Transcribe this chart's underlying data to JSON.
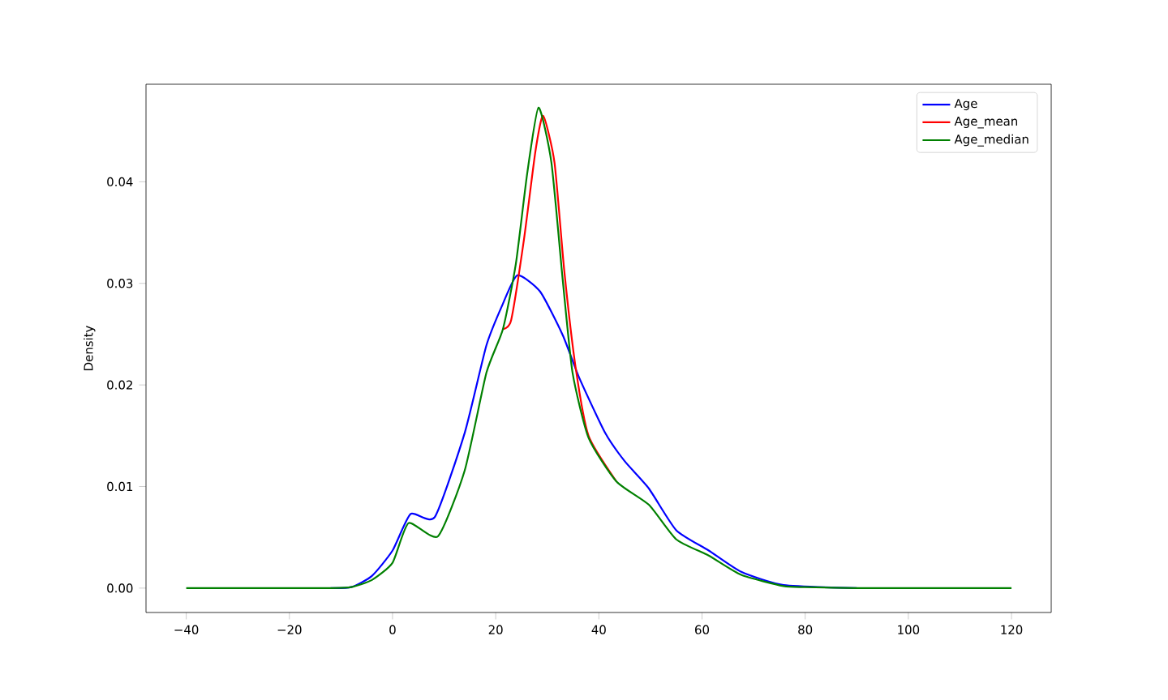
{
  "chart_data": {
    "type": "line",
    "ylabel": "Density",
    "xlim": [
      -47.8,
      127.7
    ],
    "ylim": [
      -0.0024,
      0.0496
    ],
    "xticks": [
      {
        "value": -40,
        "label": "−40"
      },
      {
        "value": -20,
        "label": "−20"
      },
      0,
      20,
      40,
      60,
      80,
      100,
      120
    ],
    "yticks": [
      {
        "value": 0,
        "label": "0.00"
      },
      {
        "value": 0.01,
        "label": "0.01"
      },
      {
        "value": 0.02,
        "label": "0.02"
      },
      {
        "value": 0.03,
        "label": "0.03"
      },
      {
        "value": 0.04,
        "label": "0.04"
      }
    ],
    "legend": "top right",
    "grid": false,
    "line_style": "solid",
    "marker": "none",
    "series": [
      {
        "name": "Age",
        "color": "#0000ff",
        "x": [
          -12,
          -8,
          -4,
          0,
          3.5,
          8.2,
          14,
          18.2,
          21.4,
          24.2,
          28.6,
          33,
          36.2,
          41.2,
          45,
          49.7,
          55,
          61.3,
          67.6,
          75.8,
          90
        ],
        "values": [
          0,
          0.0001,
          0.0012,
          0.0037,
          0.0073,
          0.007,
          0.0153,
          0.0239,
          0.028,
          0.0308,
          0.0292,
          0.0249,
          0.0207,
          0.0153,
          0.0125,
          0.0098,
          0.0057,
          0.0037,
          0.0016,
          0.0003,
          0
        ]
      },
      {
        "name": "Age_mean",
        "color": "#ff0000",
        "x": [
          21.4,
          23,
          25.5,
          27.7,
          29.2,
          31.4,
          33.3,
          35.5,
          38,
          43.4
        ],
        "values": [
          0.0255,
          0.0264,
          0.0344,
          0.043,
          0.0465,
          0.0419,
          0.0312,
          0.0217,
          0.015,
          0.0105
        ]
      },
      {
        "name": "Age_median",
        "color": "#008000",
        "x": [
          -40,
          -20,
          -12,
          -8,
          -4,
          0,
          3.1,
          8.8,
          14,
          18.2,
          21.4,
          23.9,
          26.1,
          28.3,
          30.8,
          33,
          34.9,
          38,
          43.4,
          49.7,
          55,
          61.3,
          67.6,
          75.8,
          80,
          90,
          100,
          120
        ],
        "values": [
          0,
          0,
          0,
          0.0001,
          0.0008,
          0.0025,
          0.0064,
          0.0051,
          0.0116,
          0.0212,
          0.0255,
          0.0319,
          0.0408,
          0.0473,
          0.0419,
          0.0303,
          0.0212,
          0.0148,
          0.0105,
          0.0082,
          0.0048,
          0.0032,
          0.0013,
          0.0002,
          0.0001,
          0,
          0,
          0
        ]
      }
    ]
  }
}
